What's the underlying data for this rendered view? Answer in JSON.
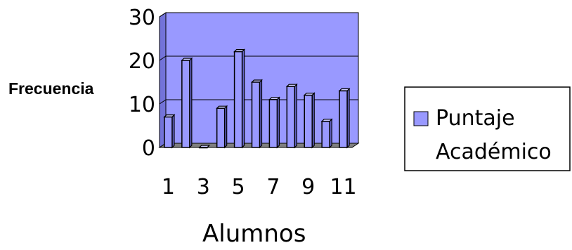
{
  "chart_data": {
    "type": "bar",
    "categories": [
      "1",
      "2",
      "3",
      "4",
      "5",
      "6",
      "7",
      "8",
      "9",
      "10",
      "11"
    ],
    "x_tick_labels": [
      "1",
      "3",
      "5",
      "7",
      "9",
      "11"
    ],
    "series": [
      {
        "name": "Puntaje Académico",
        "values": [
          7,
          20,
          0,
          9,
          22,
          15,
          11,
          14,
          12,
          6,
          13
        ]
      }
    ],
    "legend_lines": [
      "Puntaje",
      "Académico"
    ],
    "xlabel": "Alumnos",
    "ylabel": "Frecuencia",
    "ylim": [
      0,
      30
    ],
    "yticks": [
      "0",
      "10",
      "20",
      "30"
    ],
    "grid": true,
    "legend_position": "right",
    "style": "3d",
    "colors": {
      "plot_area": "#9999ff",
      "plot_area_dark": "#7373d9",
      "floor": "#7f7f7f",
      "bar_front": "#9999ff",
      "bar_side": "#6666cc",
      "bar_top": "#ccccff"
    }
  }
}
